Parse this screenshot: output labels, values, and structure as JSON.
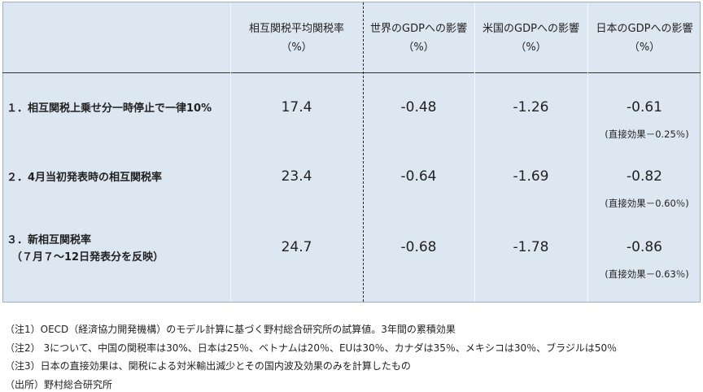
{
  "table": {
    "headers": [
      [
        "相互関税平均関税率",
        "（%）"
      ],
      [
        "世界のGDPへの影響",
        "（%）"
      ],
      [
        "米国のGDPへの影響",
        "（%）"
      ],
      [
        "日本のGDPへの影響",
        "（%）"
      ]
    ],
    "rows": [
      {
        "label": [
          "１．相互関税上乗せ分一時停止で一律10%"
        ],
        "values": [
          "17.4",
          "-0.48",
          "-1.26",
          "-0.61"
        ],
        "note": "(直接効果－0.25％)"
      },
      {
        "label": [
          "２．4月当初発表時の相互関税率"
        ],
        "values": [
          "23.4",
          "-0.64",
          "-1.69",
          "-0.82"
        ],
        "note": "(直接効果－0.60％)"
      },
      {
        "label": [
          "３．新相互関税率",
          "（７月７～12日発表分を反映）"
        ],
        "values": [
          "24.7",
          "-0.68",
          "-1.78",
          "-0.86"
        ],
        "note": "(直接効果－0.63％)"
      }
    ]
  },
  "notes": [
    "（注1）OECD（経済協力開発機構）のモデル計算に基づく野村総合研究所の試算値。3年間の累積効果",
    "（注2） 3について、中国の関税率は30%、日本は25％、ベトナムは20％、EUは30％、カナダは35％、メキシコは30％、ブラジルは50％",
    "（注3）日本の直接効果は、関税による対米輸出減少とその国内波及効果のみを計算したもの",
    "（出所）野村総合研究所"
  ]
}
